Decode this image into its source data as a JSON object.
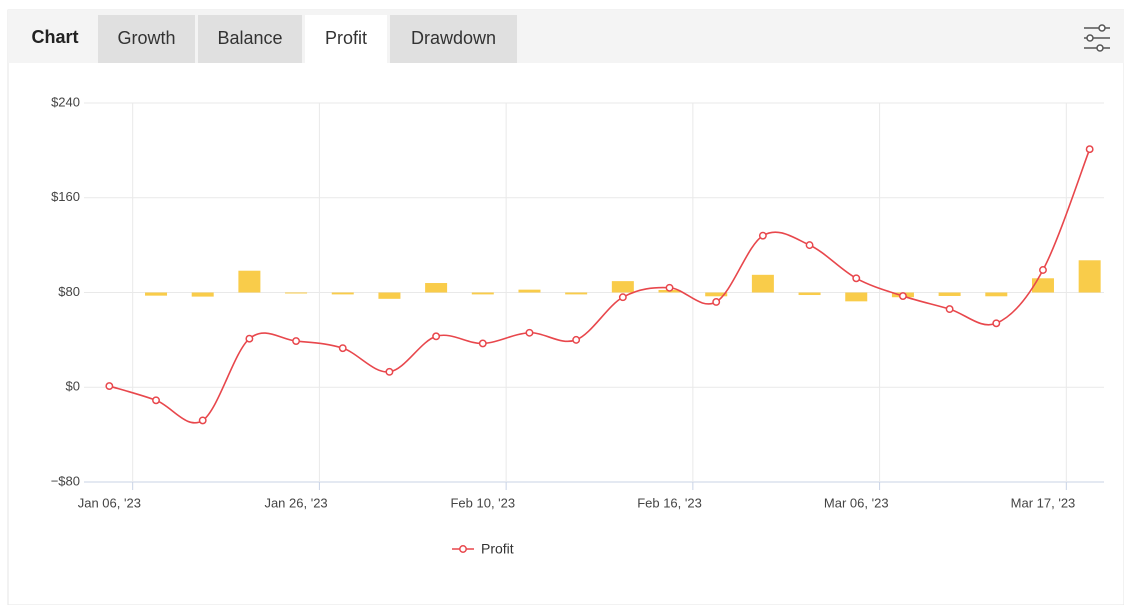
{
  "tabs": {
    "label": "Chart",
    "items": [
      "Growth",
      "Balance",
      "Profit",
      "Drawdown"
    ],
    "active": 2
  },
  "chart_data": {
    "type": "line",
    "categories": [
      "Jan 06, '23",
      null,
      null,
      null,
      "Jan 26, '23",
      null,
      null,
      null,
      "Feb 10, '23",
      null,
      null,
      null,
      "Feb 16, '23",
      null,
      null,
      null,
      "Mar 06, '23",
      null,
      null,
      null,
      "Mar 17, '23",
      null
    ],
    "series": [
      {
        "name": "Profit",
        "color": "#e8474c",
        "values": [
          1,
          -11,
          -28,
          41,
          39,
          33,
          13,
          43,
          37,
          46,
          40,
          76,
          84,
          72,
          128,
          120,
          92,
          77,
          66,
          54,
          99,
          201
        ]
      },
      {
        "type": "bar",
        "axis": "y2",
        "color": "#f9cc4a",
        "values": [
          null,
          -10,
          -13,
          69,
          -2,
          -6,
          -20,
          30,
          -6,
          9,
          -6,
          36,
          8,
          -12,
          56,
          -8,
          -28,
          -15,
          -11,
          -12,
          45,
          102
        ]
      }
    ],
    "ylim": [
      -80,
      240
    ],
    "yticks": [
      {
        "value": -80,
        "label": "−$80"
      },
      {
        "value": 0,
        "label": "$0"
      },
      {
        "value": 80,
        "label": "$80"
      },
      {
        "value": 160,
        "label": "$160"
      },
      {
        "value": 240,
        "label": "$240"
      }
    ],
    "y2lim": [
      -600,
      600
    ],
    "grid": true
  }
}
